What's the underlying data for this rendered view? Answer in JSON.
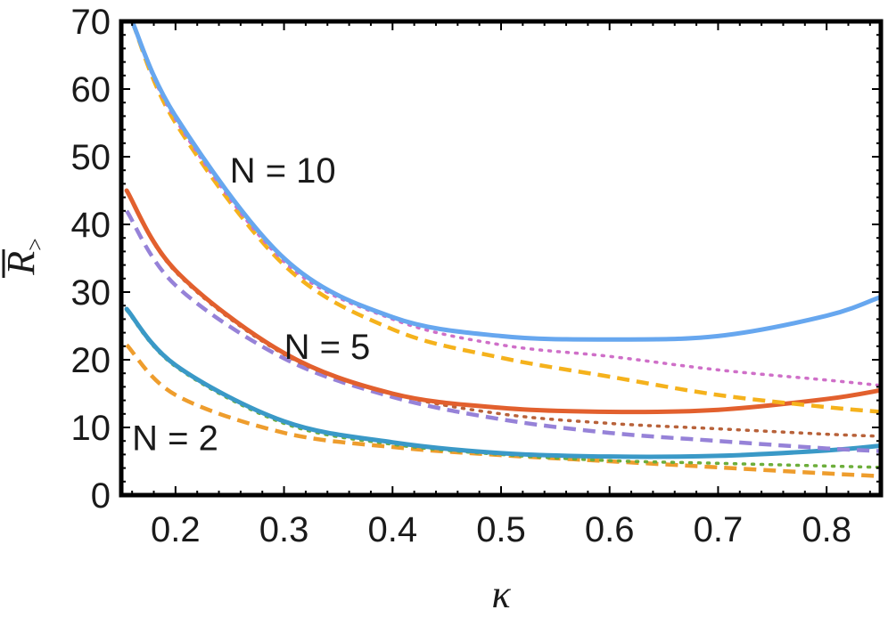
{
  "chart_data": {
    "type": "line",
    "xlabel": "κ",
    "ylabel": "R",
    "ylabel_subscript": ">",
    "xlim": [
      0.15,
      0.85
    ],
    "ylim": [
      0,
      70
    ],
    "x_ticks": [
      "0.2",
      "0.3",
      "0.4",
      "0.5",
      "0.6",
      "0.7",
      "0.8"
    ],
    "y_ticks": [
      "0",
      "10",
      "20",
      "30",
      "40",
      "50",
      "60",
      "70"
    ],
    "grid": false,
    "annotations": [
      {
        "text": "N = 10",
        "x": 0.25,
        "y": 48
      },
      {
        "text": "N = 5",
        "x": 0.3,
        "y": 22
      },
      {
        "text": "N = 2",
        "x": 0.16,
        "y": 8.5
      }
    ],
    "series": [
      {
        "color": "#ee9d2d",
        "style": "dashed",
        "x": [
          0.155,
          0.2,
          0.3,
          0.4,
          0.5,
          0.6,
          0.7,
          0.8,
          0.85
        ],
        "y": [
          22.2,
          14.8,
          9.2,
          7.1,
          5.9,
          5.0,
          4.1,
          3.2,
          2.8
        ]
      },
      {
        "color": "#6dae3b",
        "style": "dotted",
        "x": [
          0.155,
          0.2,
          0.3,
          0.4,
          0.5,
          0.6,
          0.7,
          0.8,
          0.85
        ],
        "y": [
          27.3,
          19.0,
          10.6,
          7.5,
          6.0,
          5.1,
          4.7,
          4.3,
          4.1
        ]
      },
      {
        "color": "#3a99c7",
        "style": "solid",
        "x": [
          0.155,
          0.2,
          0.3,
          0.4,
          0.5,
          0.6,
          0.7,
          0.8,
          0.85
        ],
        "y": [
          27.5,
          19.2,
          10.9,
          7.8,
          6.2,
          5.7,
          5.8,
          6.6,
          7.3
        ]
      },
      {
        "color": "#9682d8",
        "style": "dashed",
        "x": [
          0.155,
          0.2,
          0.3,
          0.4,
          0.5,
          0.6,
          0.7,
          0.8,
          0.85
        ],
        "y": [
          42.0,
          31.0,
          20.2,
          14.5,
          11.2,
          9.2,
          8.0,
          6.9,
          6.5
        ]
      },
      {
        "color": "#b8623a",
        "style": "dotted",
        "x": [
          0.155,
          0.2,
          0.3,
          0.4,
          0.5,
          0.6,
          0.7,
          0.8,
          0.85
        ],
        "y": [
          45.0,
          33.0,
          20.8,
          15.0,
          12.0,
          10.6,
          9.8,
          9.0,
          8.7
        ]
      },
      {
        "color": "#e2602e",
        "style": "solid",
        "x": [
          0.155,
          0.2,
          0.3,
          0.4,
          0.5,
          0.6,
          0.7,
          0.8,
          0.85
        ],
        "y": [
          45.0,
          33.2,
          21.0,
          15.0,
          12.9,
          12.3,
          12.6,
          14.2,
          15.5
        ]
      },
      {
        "color": "#f5b21c",
        "style": "dashed",
        "x": [
          0.16,
          0.2,
          0.3,
          0.4,
          0.5,
          0.6,
          0.7,
          0.8,
          0.85
        ],
        "y": [
          70.0,
          55.0,
          34.0,
          24.5,
          20.3,
          17.5,
          14.8,
          13.0,
          12.3
        ]
      },
      {
        "color": "#cf6fc8",
        "style": "dotted",
        "x": [
          0.16,
          0.2,
          0.3,
          0.4,
          0.5,
          0.6,
          0.7,
          0.8,
          0.85
        ],
        "y": [
          70.0,
          55.5,
          34.5,
          26.0,
          22.2,
          20.5,
          18.5,
          17.0,
          16.2
        ]
      },
      {
        "color": "#67a7ef",
        "style": "solid",
        "x": [
          0.16,
          0.2,
          0.3,
          0.4,
          0.5,
          0.6,
          0.7,
          0.8,
          0.85
        ],
        "y": [
          70.0,
          56.0,
          35.0,
          26.3,
          23.5,
          23.0,
          23.5,
          26.5,
          29.3
        ]
      }
    ]
  }
}
